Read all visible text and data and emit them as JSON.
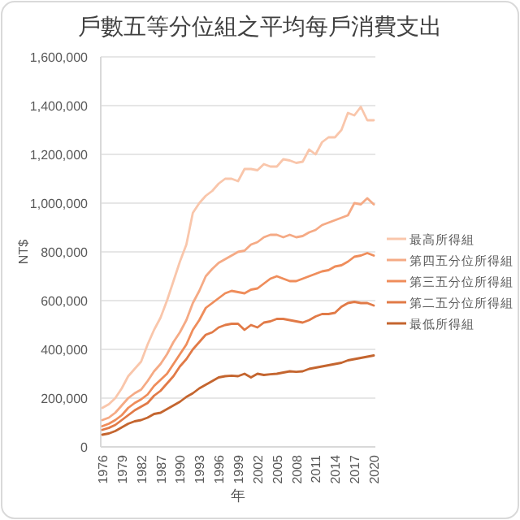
{
  "chart_data": {
    "type": "line",
    "title": "戶數五等分位組之平均每戶消費支出",
    "xlabel": "年",
    "ylabel": "NT$",
    "categories": [
      "1976",
      null,
      null,
      "1979",
      null,
      null,
      "1982",
      null,
      null,
      "1987",
      null,
      null,
      "1990",
      null,
      null,
      "1993",
      null,
      null,
      "1996",
      null,
      null,
      "1999",
      null,
      null,
      "2002",
      null,
      null,
      "2005",
      null,
      null,
      "2008",
      null,
      null,
      "2011",
      null,
      null,
      "2014",
      null,
      null,
      "2017",
      null,
      null,
      "2020"
    ],
    "ylim": [
      0,
      1600000
    ],
    "yticks": [
      {
        "value": 0,
        "label": "0"
      },
      {
        "value": 200000,
        "label": "200,000"
      },
      {
        "value": 400000,
        "label": "400,000"
      },
      {
        "value": 600000,
        "label": "600,000"
      },
      {
        "value": 800000,
        "label": "800,000"
      },
      {
        "value": 1000000,
        "label": "1,000,000"
      },
      {
        "value": 1200000,
        "label": "1,200,000"
      },
      {
        "value": 1400000,
        "label": "1,400,000"
      },
      {
        "value": 1600000,
        "label": "1,600,000"
      }
    ],
    "grid": "y",
    "legend": "right",
    "marker": "none",
    "line_style": "solid",
    "series": [
      {
        "name": "最高所得組",
        "color": "#f9c6ab",
        "values": [
          160000,
          175000,
          200000,
          240000,
          290000,
          320000,
          350000,
          420000,
          480000,
          530000,
          600000,
          680000,
          760000,
          830000,
          960000,
          1000000,
          1030000,
          1050000,
          1080000,
          1100000,
          1100000,
          1090000,
          1140000,
          1140000,
          1135000,
          1160000,
          1150000,
          1150000,
          1180000,
          1175000,
          1165000,
          1170000,
          1220000,
          1200000,
          1250000,
          1270000,
          1270000,
          1300000,
          1370000,
          1360000,
          1395000,
          1340000,
          1340000
        ]
      },
      {
        "name": "第四五分位所得組",
        "color": "#f5aa85",
        "values": [
          110000,
          120000,
          140000,
          170000,
          200000,
          220000,
          235000,
          270000,
          310000,
          340000,
          380000,
          430000,
          470000,
          520000,
          590000,
          640000,
          700000,
          730000,
          755000,
          770000,
          785000,
          800000,
          805000,
          830000,
          840000,
          860000,
          870000,
          870000,
          860000,
          870000,
          860000,
          865000,
          880000,
          890000,
          910000,
          920000,
          930000,
          940000,
          950000,
          1000000,
          995000,
          1020000,
          995000
        ]
      },
      {
        "name": "第三五分位所得組",
        "color": "#ef8d5b",
        "values": [
          85000,
          95000,
          110000,
          130000,
          160000,
          180000,
          195000,
          215000,
          250000,
          275000,
          300000,
          340000,
          380000,
          420000,
          480000,
          520000,
          570000,
          590000,
          610000,
          630000,
          640000,
          635000,
          630000,
          645000,
          650000,
          670000,
          690000,
          700000,
          690000,
          680000,
          680000,
          690000,
          700000,
          710000,
          720000,
          725000,
          740000,
          745000,
          760000,
          780000,
          785000,
          795000,
          785000
        ]
      },
      {
        "name": "第二五分位所得組",
        "color": "#e17a47",
        "values": [
          70000,
          78000,
          90000,
          110000,
          130000,
          150000,
          165000,
          180000,
          210000,
          230000,
          260000,
          290000,
          330000,
          360000,
          400000,
          430000,
          460000,
          470000,
          490000,
          500000,
          505000,
          505000,
          480000,
          500000,
          490000,
          510000,
          515000,
          525000,
          525000,
          520000,
          515000,
          510000,
          520000,
          535000,
          545000,
          545000,
          550000,
          575000,
          590000,
          595000,
          590000,
          590000,
          580000
        ]
      },
      {
        "name": "最低所得組",
        "color": "#c4652f",
        "values": [
          50000,
          55000,
          65000,
          80000,
          95000,
          105000,
          110000,
          120000,
          135000,
          140000,
          155000,
          170000,
          185000,
          205000,
          220000,
          240000,
          255000,
          270000,
          285000,
          290000,
          292000,
          290000,
          300000,
          285000,
          300000,
          295000,
          298000,
          300000,
          305000,
          310000,
          308000,
          310000,
          320000,
          325000,
          330000,
          335000,
          340000,
          345000,
          355000,
          360000,
          365000,
          370000,
          375000
        ]
      }
    ]
  }
}
